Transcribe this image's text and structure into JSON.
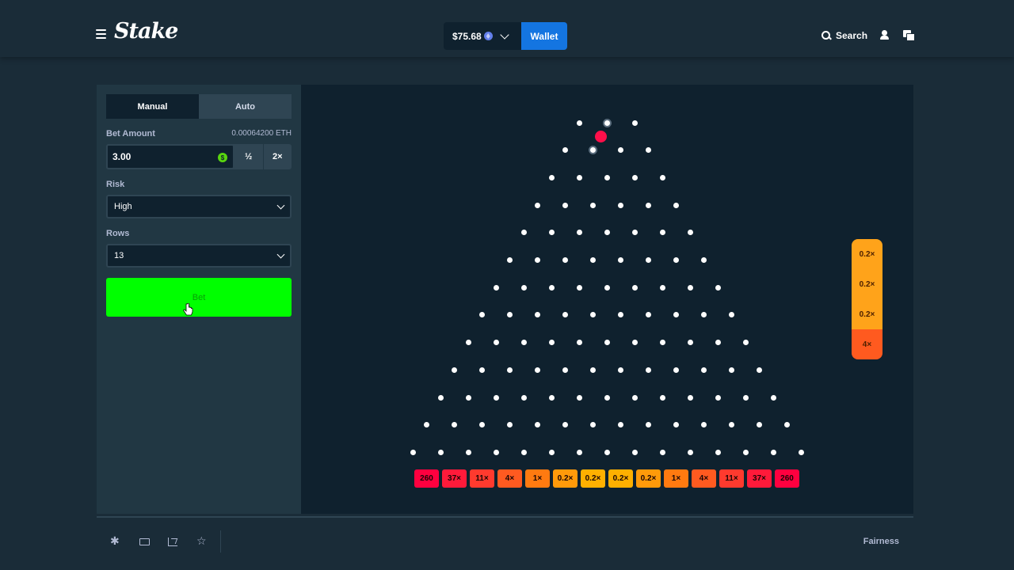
{
  "header": {
    "logo_text": "Stake",
    "balance": "$75.68",
    "wallet_label": "Wallet",
    "search_label": "Search"
  },
  "sidebar": {
    "tabs": [
      {
        "label": "Manual",
        "active": true
      },
      {
        "label": "Auto",
        "active": false
      }
    ],
    "bet_amount_label": "Bet Amount",
    "bet_amount_crypto": "0.00064200 ETH",
    "bet_amount_value": "3.00",
    "half_label": "½",
    "double_label": "2×",
    "risk_label": "Risk",
    "risk_value": "High",
    "rows_label": "Rows",
    "rows_value": "13",
    "bet_button_label": "Bet"
  },
  "board": {
    "rows": 13,
    "multipliers": [
      "260",
      "37×",
      "11×",
      "4×",
      "1×",
      "0.2×",
      "0.2×",
      "0.2×",
      "0.2×",
      "1×",
      "4×",
      "11×",
      "37×",
      "260"
    ],
    "bucket_colors": [
      "#ff003f",
      "#ff1a3a",
      "#ff3a2e",
      "#ff5a20",
      "#ff7a10",
      "#ff9a0a",
      "#ffb000",
      "#ffb000",
      "#ff9a0a",
      "#ff7a10",
      "#ff5a20",
      "#ff3a2e",
      "#ff1a3a",
      "#ff003f"
    ],
    "recent_results": [
      {
        "label": "0.2×",
        "color": "#ffa31a"
      },
      {
        "label": "0.2×",
        "color": "#ffa31a"
      },
      {
        "label": "0.2×",
        "color": "#ffa31a"
      },
      {
        "label": "4×",
        "color": "#ff5a1f"
      }
    ]
  },
  "footer": {
    "fairness_label": "Fairness"
  },
  "colors": {
    "background": "#1a2c38",
    "panel": "#213743",
    "board": "#0f212e",
    "bet_button": "#00ff00",
    "wallet_button": "#1475e1"
  }
}
